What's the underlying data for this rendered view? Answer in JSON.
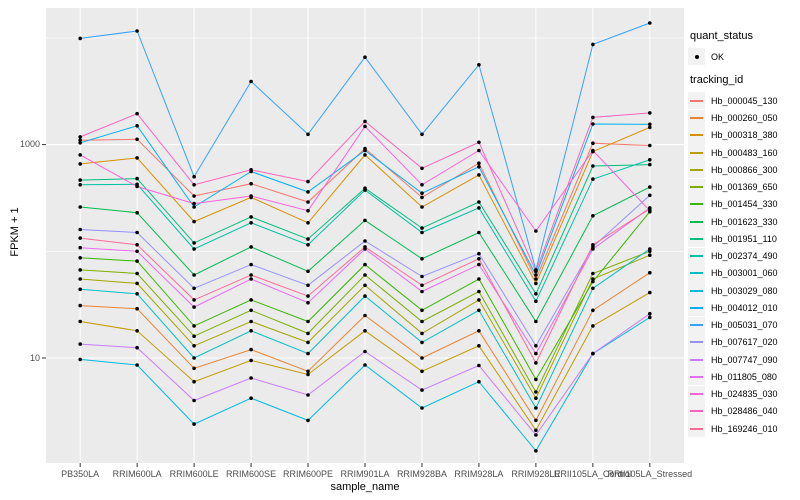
{
  "figure": {
    "background": "#FFFFFF",
    "panel_bg": "#EBEBEB",
    "grid_color": "#FFFFFF",
    "axis_text_color": "#4D4D4D",
    "tick_color": "#333333",
    "point_color": "#000000",
    "legend_key_bg": "#F2F2F2"
  },
  "axes": {
    "x_title": "sample_name",
    "y_title": "FPKM + 1",
    "y_ticks": [
      {
        "label": "1000",
        "value": 1000
      },
      {
        "label": "10",
        "value": 10
      }
    ]
  },
  "legend": {
    "quant_title": "quant_status",
    "quant_items": [
      {
        "label": "OK",
        "marker": "point"
      }
    ],
    "tracking_title": "tracking_id"
  },
  "chart_data": {
    "type": "line",
    "title": "",
    "xlabel": "sample_name",
    "ylabel": "FPKM + 1",
    "y_scale": "log10",
    "grid": true,
    "legend_position": "right",
    "y_major_breaks": [
      10,
      1000
    ],
    "y_minor_breaks": [
      100,
      10000
    ],
    "ylim": [
      1.05,
      19000
    ],
    "point_marker": "black-dot",
    "categories": [
      "PB350LA",
      "RRIM600LA",
      "RRIM600LE",
      "RRIM600SE",
      "RRIM600PE",
      "RRIM901LA",
      "RRIM928BA",
      "RRIM928LA",
      "RRIM928LE",
      "RRII105LA_Control",
      "RRII105LA_Stressed"
    ],
    "series": [
      {
        "name": "Hb_000045_130",
        "color": "#F8766D",
        "values": [
          1100,
          1120,
          330,
          430,
          290,
          920,
          320,
          670,
          55,
          1030,
          980
        ]
      },
      {
        "name": "Hb_000260_050",
        "color": "#EA8331",
        "values": [
          31,
          29,
          8,
          12,
          7.5,
          25,
          10,
          18,
          2.6,
          28,
          63
        ]
      },
      {
        "name": "Hb_000318_380",
        "color": "#D89000",
        "values": [
          660,
          750,
          190,
          320,
          185,
          800,
          260,
          520,
          50,
          860,
          1450
        ]
      },
      {
        "name": "Hb_000483_160",
        "color": "#C09B00",
        "values": [
          22,
          18,
          6,
          9.5,
          7,
          18,
          7.5,
          13,
          2.1,
          20,
          41
        ]
      },
      {
        "name": "Hb_000866_300",
        "color": "#A3A500",
        "values": [
          55,
          50,
          13,
          22,
          14,
          48,
          17,
          35,
          4.2,
          55,
          92
        ]
      },
      {
        "name": "Hb_001369_650",
        "color": "#7CAE00",
        "values": [
          67,
          62,
          16,
          28,
          17,
          60,
          22,
          42,
          4.8,
          62,
          100
        ]
      },
      {
        "name": "Hb_001454_330",
        "color": "#39B600",
        "values": [
          87,
          81,
          20,
          35,
          22,
          75,
          28,
          55,
          6.3,
          52,
          235
        ]
      },
      {
        "name": "Hb_001623_330",
        "color": "#00BB4E",
        "values": [
          260,
          230,
          60,
          110,
          65,
          195,
          85,
          150,
          22,
          215,
          400
        ]
      },
      {
        "name": "Hb_001951_110",
        "color": "#00BF7D",
        "values": [
          465,
          480,
          120,
          210,
          130,
          390,
          165,
          290,
          40,
          630,
          650
        ]
      },
      {
        "name": "Hb_002374_490",
        "color": "#00C1A3",
        "values": [
          420,
          425,
          105,
          185,
          115,
          375,
          150,
          255,
          34,
          475,
          720
        ]
      },
      {
        "name": "Hb_003001_060",
        "color": "#00BFC4",
        "values": [
          44,
          40,
          10,
          18,
          11,
          38,
          14,
          28,
          3.4,
          45,
          105
        ]
      },
      {
        "name": "Hb_003029_080",
        "color": "#00BAE0",
        "values": [
          9.7,
          8.6,
          2.4,
          4.2,
          2.6,
          8.6,
          3.4,
          6,
          1.35,
          11,
          24
        ]
      },
      {
        "name": "Hb_004012_010",
        "color": "#00B0F6",
        "values": [
          1040,
          1500,
          260,
          560,
          360,
          880,
          350,
          620,
          60,
          1560,
          1550
        ]
      },
      {
        "name": "Hb_005031_070",
        "color": "#35A2FF",
        "values": [
          9900,
          11600,
          500,
          3900,
          1250,
          6600,
          1250,
          5600,
          67,
          8700,
          13800
        ]
      },
      {
        "name": "Hb_007617_020",
        "color": "#9590FF",
        "values": [
          160,
          150,
          45,
          75,
          48,
          125,
          58,
          95,
          13,
          110,
          335
        ]
      },
      {
        "name": "Hb_007747_090",
        "color": "#C77CFF",
        "values": [
          13.5,
          12.5,
          4,
          6.5,
          4.5,
          11.5,
          5,
          8.5,
          1.9,
          11,
          26
        ]
      },
      {
        "name": "Hb_011805_080",
        "color": "#E76BF3",
        "values": [
          108,
          100,
          30,
          55,
          33,
          105,
          42,
          75,
          11,
          105,
          255
        ]
      },
      {
        "name": "Hb_024835_030",
        "color": "#FA62DB",
        "values": [
          800,
          405,
          280,
          330,
          240,
          1480,
          420,
          880,
          155,
          880,
          240
        ]
      },
      {
        "name": "Hb_028486_040",
        "color": "#FF62BC",
        "values": [
          1180,
          1950,
          420,
          580,
          450,
          1650,
          600,
          1050,
          65,
          1800,
          1980
        ]
      },
      {
        "name": "Hb_169246_010",
        "color": "#FF6A98",
        "values": [
          133,
          115,
          35,
          60,
          38,
          110,
          48,
          85,
          9,
          115,
          250
        ]
      }
    ]
  }
}
